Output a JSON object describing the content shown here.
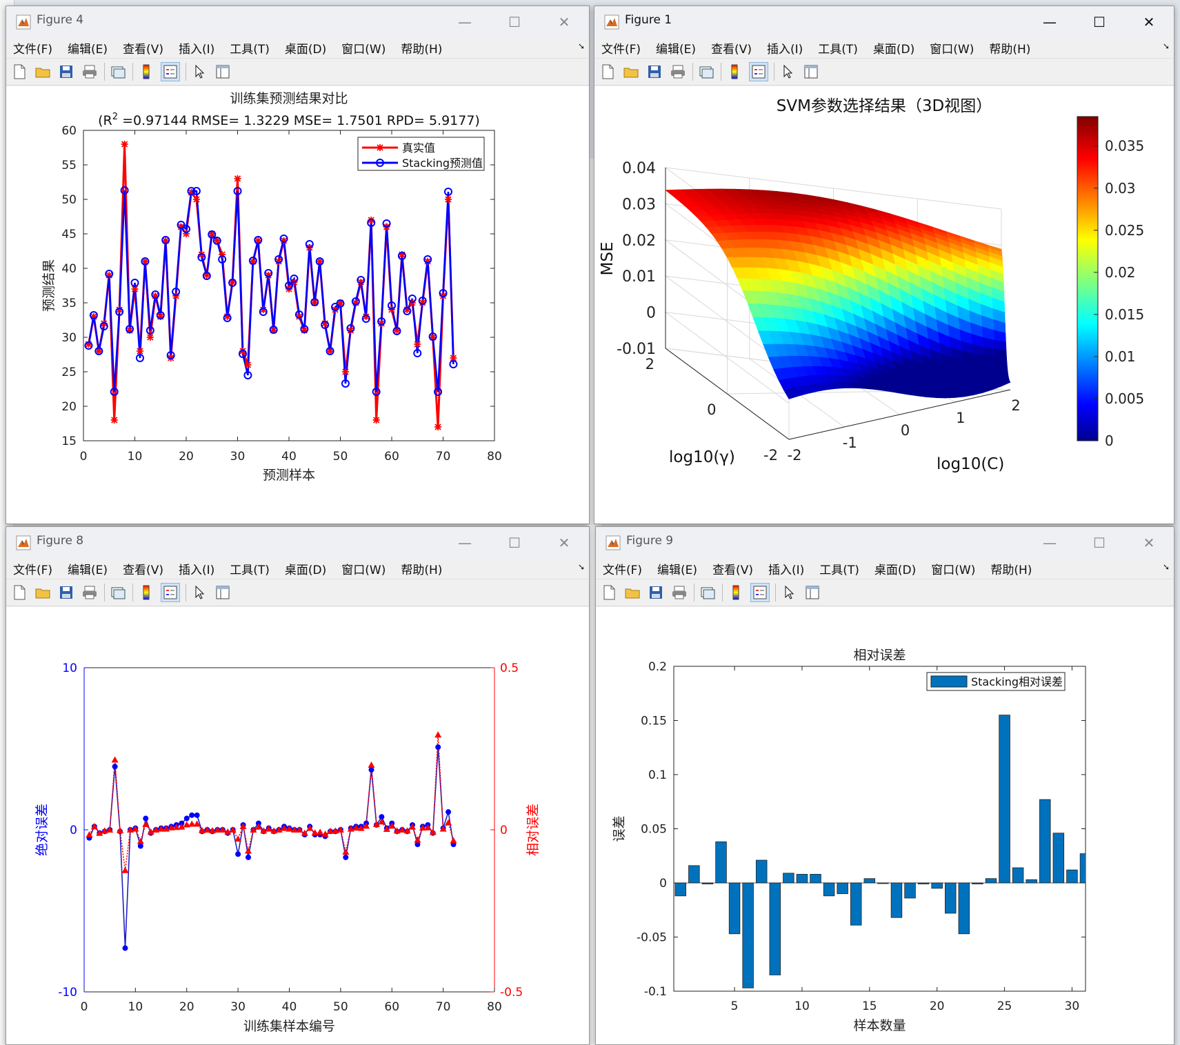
{
  "menu": [
    "文件(F)",
    "编辑(E)",
    "查看(V)",
    "插入(I)",
    "工具(T)",
    "桌面(D)",
    "窗口(W)",
    "帮助(H)"
  ],
  "controls": {
    "minimize": "—",
    "maximize": "☐",
    "close": "✕"
  },
  "toolbar_icons": [
    "new-file-icon",
    "open-folder-icon",
    "save-icon",
    "print-icon",
    "link-figure-icon",
    "colorbar-icon",
    "legend-icon",
    "pointer-icon",
    "property-editor-icon"
  ],
  "figures": {
    "fig4": {
      "title": "Figure 4"
    },
    "fig1": {
      "title": "Figure 1"
    },
    "fig8": {
      "title": "Figure 8"
    },
    "fig9": {
      "title": "Figure 9"
    }
  },
  "chart_data": [
    {
      "id": "fig4",
      "type": "line",
      "title": "训练集预测结果对比",
      "subtitle_parts": [
        "(R",
        "2",
        " =0.97144 RMSE= 1.3229 MSE= 1.7501 RPD= 5.9177)"
      ],
      "xlabel": "预测样本",
      "ylabel": "预测结果",
      "xlim": [
        0,
        80
      ],
      "ylim": [
        15,
        60
      ],
      "xticks": [
        0,
        10,
        20,
        30,
        40,
        50,
        60,
        70,
        80
      ],
      "yticks": [
        15,
        20,
        25,
        30,
        35,
        40,
        45,
        50,
        55,
        60
      ],
      "legend_position": "top-right",
      "series": [
        {
          "name": "真实值",
          "color": "#ff0000",
          "marker": "star",
          "values": [
            29,
            33,
            28,
            32,
            39,
            18,
            34,
            58,
            31,
            37,
            28,
            41,
            30,
            36,
            33,
            44,
            27,
            36,
            46,
            45,
            51,
            50,
            42,
            39,
            45,
            44,
            42,
            33,
            38,
            53,
            28,
            26,
            41,
            44,
            34,
            39,
            31,
            41,
            44,
            37,
            38,
            33,
            31,
            43,
            35,
            41,
            32,
            28,
            34,
            35,
            25,
            31,
            35,
            38,
            33,
            47,
            18,
            32,
            46,
            34,
            31,
            42,
            34,
            35,
            29,
            35,
            41,
            30,
            17,
            36,
            50,
            27
          ]
        },
        {
          "name": "Stacking预测值",
          "color": "#0000ff",
          "marker": "circle",
          "values": [
            28.8,
            33.2,
            28.0,
            31.6,
            39.2,
            22.1,
            33.7,
            51.3,
            31.2,
            37.9,
            27.0,
            41.0,
            31.0,
            36.2,
            33.2,
            44.1,
            27.4,
            36.6,
            46.3,
            45.7,
            51.2,
            51.2,
            41.6,
            38.9,
            44.9,
            44.0,
            41.3,
            32.8,
            37.9,
            51.2,
            27.6,
            24.5,
            41.1,
            44.1,
            33.7,
            39.3,
            31.1,
            41.3,
            44.3,
            37.5,
            38.5,
            33.3,
            31.2,
            43.5,
            35.1,
            41.0,
            31.8,
            28.0,
            34.4,
            34.9,
            23.3,
            31.3,
            35.2,
            38.3,
            32.7,
            46.6,
            22.1,
            32.3,
            46.5,
            34.6,
            30.9,
            41.8,
            33.8,
            35.6,
            27.7,
            35.3,
            41.3,
            30.1,
            22.1,
            36.4,
            51.1,
            26.1
          ]
        }
      ]
    },
    {
      "id": "fig1",
      "type": "surface",
      "title": "SVM参数选择结果（3D视图）",
      "xlabel": "log10(C)",
      "ylabel": "log10(γ)",
      "zlabel": "MSE",
      "xticks": [
        -2,
        -1,
        0,
        1,
        2
      ],
      "yticks": [
        -2,
        0,
        2
      ],
      "zticks": [
        -0.01,
        0,
        0.01,
        0.02,
        0.03,
        0.04
      ],
      "zlim": [
        -0.01,
        0.04
      ],
      "colorbar": {
        "ticks": [
          0,
          0.005,
          0.01,
          0.015,
          0.02,
          0.025,
          0.03,
          0.035
        ],
        "range": [
          0,
          0.0385
        ],
        "position": "right"
      }
    },
    {
      "id": "fig8",
      "type": "line",
      "title": "",
      "xlabel": "训练集样本编号",
      "ylabel_left": "绝对误差",
      "ylabel_right": "相对误差",
      "xlim": [
        0,
        80
      ],
      "ylim_left": [
        -10,
        10
      ],
      "ylim_right": [
        -0.5,
        0.5
      ],
      "xticks": [
        0,
        10,
        20,
        30,
        40,
        50,
        60,
        70,
        80
      ],
      "yticks_left": [
        -10,
        0,
        10
      ],
      "yticks_right": [
        -0.5,
        0,
        0.5
      ],
      "series": [
        {
          "name": "绝对误差",
          "axis": "left",
          "color": "#0000ff",
          "marker": "circle",
          "values": [
            -0.5,
            0.2,
            -0.2,
            -0.1,
            0.0,
            3.9,
            -0.1,
            -7.3,
            0.0,
            0.1,
            -1.0,
            0.7,
            -0.2,
            0.0,
            0.1,
            0.1,
            0.2,
            0.3,
            0.4,
            0.7,
            0.9,
            0.9,
            -0.1,
            0.0,
            -0.1,
            0.0,
            0.0,
            -0.2,
            0.0,
            -1.5,
            0.3,
            -1.7,
            0.0,
            0.4,
            -0.1,
            0.1,
            -0.1,
            0.0,
            0.2,
            0.1,
            0.0,
            0.0,
            -0.3,
            0.2,
            -0.3,
            -0.3,
            -0.4,
            -0.1,
            -0.1,
            0.0,
            -1.7,
            0.1,
            0.2,
            0.2,
            0.4,
            3.7,
            0.3,
            0.8,
            0.1,
            0.4,
            -0.1,
            0.0,
            -0.1,
            0.3,
            -0.9,
            0.2,
            0.3,
            -0.2,
            5.1,
            0.1,
            1.1,
            -0.9
          ]
        },
        {
          "name": "相对误差",
          "axis": "right",
          "color": "#ff0000",
          "marker": "triangle",
          "values": [
            -0.015,
            0.01,
            -0.01,
            -0.003,
            0.0,
            0.216,
            -0.002,
            -0.125,
            0.0,
            0.003,
            -0.035,
            0.017,
            -0.006,
            0.0,
            0.003,
            0.003,
            0.007,
            0.008,
            0.009,
            0.016,
            0.018,
            0.018,
            -0.002,
            0.0,
            -0.002,
            0.0,
            0.0,
            -0.006,
            0.0,
            -0.028,
            0.011,
            -0.065,
            0.0,
            0.009,
            -0.003,
            0.003,
            -0.003,
            0.0,
            0.005,
            0.003,
            0.0,
            0.0,
            -0.01,
            0.005,
            -0.009,
            -0.007,
            -0.013,
            -0.004,
            -0.003,
            0.0,
            -0.068,
            0.003,
            0.006,
            0.005,
            0.012,
            0.2,
            0.017,
            0.025,
            0.002,
            0.012,
            -0.003,
            0.0,
            -0.003,
            0.009,
            -0.031,
            0.006,
            0.007,
            -0.007,
            0.293,
            0.003,
            0.022,
            -0.033
          ]
        }
      ]
    },
    {
      "id": "fig9",
      "type": "bar",
      "title": "相对误差",
      "xlabel": "样本数量",
      "ylabel": "误差",
      "xlim": [
        0.5,
        31
      ],
      "ylim": [
        -0.1,
        0.2
      ],
      "xticks": [
        5,
        10,
        15,
        20,
        25,
        30
      ],
      "yticks": [
        -0.1,
        -0.05,
        0,
        0.05,
        0.1,
        0.15,
        0.2
      ],
      "legend_position": "top-right",
      "series": [
        {
          "name": "Stacking相对误差",
          "color": "#0072bd",
          "values": [
            -0.012,
            0.016,
            -0.001,
            0.038,
            -0.047,
            -0.097,
            0.021,
            -0.085,
            0.009,
            0.008,
            0.008,
            -0.012,
            -0.01,
            -0.039,
            0.004,
            0.0,
            -0.032,
            -0.014,
            -0.001,
            -0.005,
            -0.028,
            -0.047,
            -0.001,
            0.004,
            0.155,
            0.014,
            0.003,
            0.077,
            0.046,
            0.012,
            0.027
          ]
        }
      ]
    }
  ]
}
